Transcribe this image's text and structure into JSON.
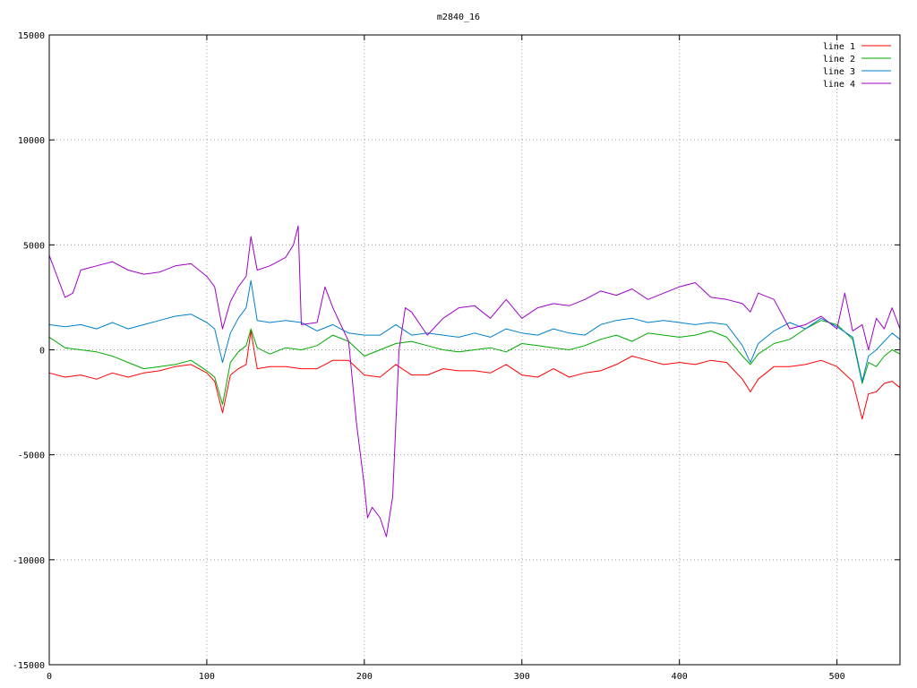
{
  "chart_data": {
    "type": "line",
    "title": "m2840_16",
    "xlabel": "",
    "ylabel": "",
    "xlim": [
      0,
      540
    ],
    "ylim": [
      -15000,
      15000
    ],
    "grid": true,
    "legend_position": "top-right",
    "x_ticks": [
      0,
      100,
      200,
      300,
      400,
      500
    ],
    "y_ticks": [
      -15000,
      -10000,
      -5000,
      0,
      5000,
      10000,
      15000
    ],
    "series": [
      {
        "name": "line 1",
        "color": "#ff0000",
        "x": [
          0,
          10,
          20,
          30,
          40,
          50,
          60,
          70,
          80,
          90,
          100,
          105,
          110,
          115,
          120,
          125,
          128,
          132,
          140,
          150,
          160,
          170,
          180,
          190,
          200,
          210,
          220,
          230,
          240,
          250,
          260,
          270,
          280,
          290,
          300,
          310,
          320,
          330,
          340,
          350,
          360,
          370,
          380,
          390,
          400,
          410,
          420,
          430,
          440,
          445,
          450,
          460,
          470,
          480,
          490,
          500,
          510,
          516,
          520,
          525,
          530,
          535,
          540
        ],
        "y": [
          -1100,
          -1300,
          -1200,
          -1400,
          -1100,
          -1300,
          -1100,
          -1000,
          -800,
          -700,
          -1100,
          -1500,
          -3000,
          -1200,
          -900,
          -700,
          900,
          -900,
          -800,
          -800,
          -900,
          -900,
          -500,
          -500,
          -1200,
          -1300,
          -700,
          -1200,
          -1200,
          -900,
          -1000,
          -1000,
          -1100,
          -700,
          -1200,
          -1300,
          -900,
          -1300,
          -1100,
          -1000,
          -700,
          -300,
          -500,
          -700,
          -600,
          -700,
          -500,
          -600,
          -1400,
          -2000,
          -1400,
          -800,
          -800,
          -700,
          -500,
          -800,
          -1500,
          -3300,
          -2100,
          -2000,
          -1600,
          -1500,
          -1800
        ]
      },
      {
        "name": "line 2",
        "color": "#00aa00",
        "x": [
          0,
          10,
          20,
          30,
          40,
          50,
          60,
          70,
          80,
          90,
          100,
          105,
          110,
          115,
          120,
          125,
          128,
          132,
          140,
          150,
          160,
          170,
          180,
          190,
          200,
          210,
          220,
          230,
          240,
          250,
          260,
          270,
          280,
          290,
          300,
          310,
          320,
          330,
          340,
          350,
          360,
          370,
          380,
          390,
          400,
          410,
          420,
          430,
          440,
          445,
          450,
          460,
          470,
          480,
          490,
          500,
          510,
          516,
          520,
          525,
          530,
          535,
          540
        ],
        "y": [
          600,
          100,
          0,
          -100,
          -300,
          -600,
          -900,
          -800,
          -700,
          -500,
          -1000,
          -1300,
          -2600,
          -600,
          -100,
          200,
          1000,
          100,
          -200,
          100,
          0,
          200,
          700,
          400,
          -300,
          0,
          300,
          400,
          200,
          0,
          -100,
          0,
          100,
          -100,
          300,
          200,
          100,
          0,
          200,
          500,
          700,
          400,
          800,
          700,
          600,
          700,
          900,
          600,
          -300,
          -700,
          -200,
          300,
          500,
          1000,
          1400,
          1200,
          500,
          -1600,
          -600,
          -800,
          -300,
          0,
          -200
        ]
      },
      {
        "name": "line 3",
        "color": "#0080cc",
        "x": [
          0,
          10,
          20,
          30,
          40,
          50,
          60,
          70,
          80,
          90,
          100,
          105,
          110,
          115,
          120,
          125,
          128,
          132,
          140,
          150,
          160,
          170,
          180,
          190,
          200,
          210,
          220,
          230,
          240,
          250,
          260,
          270,
          280,
          290,
          300,
          310,
          320,
          330,
          340,
          350,
          360,
          370,
          380,
          390,
          400,
          410,
          420,
          430,
          440,
          445,
          450,
          460,
          470,
          480,
          490,
          500,
          510,
          516,
          520,
          525,
          530,
          535,
          540
        ],
        "y": [
          1200,
          1100,
          1200,
          1000,
          1300,
          1000,
          1200,
          1400,
          1600,
          1700,
          1300,
          1000,
          -600,
          800,
          1500,
          2000,
          3300,
          1400,
          1300,
          1400,
          1300,
          900,
          1200,
          800,
          700,
          700,
          1200,
          700,
          800,
          700,
          600,
          800,
          600,
          1000,
          800,
          700,
          1000,
          800,
          700,
          1200,
          1400,
          1500,
          1300,
          1400,
          1300,
          1200,
          1300,
          1200,
          200,
          -600,
          300,
          900,
          1300,
          1000,
          1500,
          1100,
          600,
          -1500,
          -300,
          0,
          400,
          800,
          500
        ]
      },
      {
        "name": "line 4",
        "color": "#a000c8",
        "x": [
          0,
          5,
          10,
          15,
          20,
          25,
          30,
          40,
          50,
          60,
          70,
          80,
          90,
          100,
          105,
          110,
          115,
          120,
          125,
          128,
          132,
          140,
          150,
          155,
          158,
          160,
          170,
          175,
          180,
          190,
          195,
          200,
          202,
          205,
          210,
          214,
          218,
          222,
          226,
          230,
          240,
          250,
          260,
          270,
          280,
          290,
          300,
          310,
          320,
          330,
          340,
          350,
          360,
          370,
          380,
          390,
          400,
          410,
          420,
          430,
          440,
          445,
          450,
          460,
          470,
          480,
          490,
          500,
          505,
          510,
          516,
          520,
          525,
          530,
          535,
          540
        ],
        "y": [
          4500,
          3500,
          2500,
          2700,
          3800,
          3900,
          4000,
          4200,
          3800,
          3600,
          3700,
          4000,
          4100,
          3500,
          3000,
          1000,
          2300,
          3000,
          3500,
          5400,
          3800,
          4000,
          4400,
          5000,
          5900,
          1200,
          1300,
          3000,
          2000,
          400,
          -3500,
          -6500,
          -8000,
          -7500,
          -8000,
          -8900,
          -7000,
          0,
          2000,
          1800,
          700,
          1500,
          2000,
          2100,
          1500,
          2400,
          1500,
          2000,
          2200,
          2100,
          2400,
          2800,
          2600,
          2900,
          2400,
          2700,
          3000,
          3200,
          2500,
          2400,
          2200,
          1800,
          2700,
          2400,
          1000,
          1200,
          1600,
          1000,
          2700,
          900,
          1200,
          0,
          1500,
          1000,
          2000,
          1000
        ]
      }
    ]
  }
}
